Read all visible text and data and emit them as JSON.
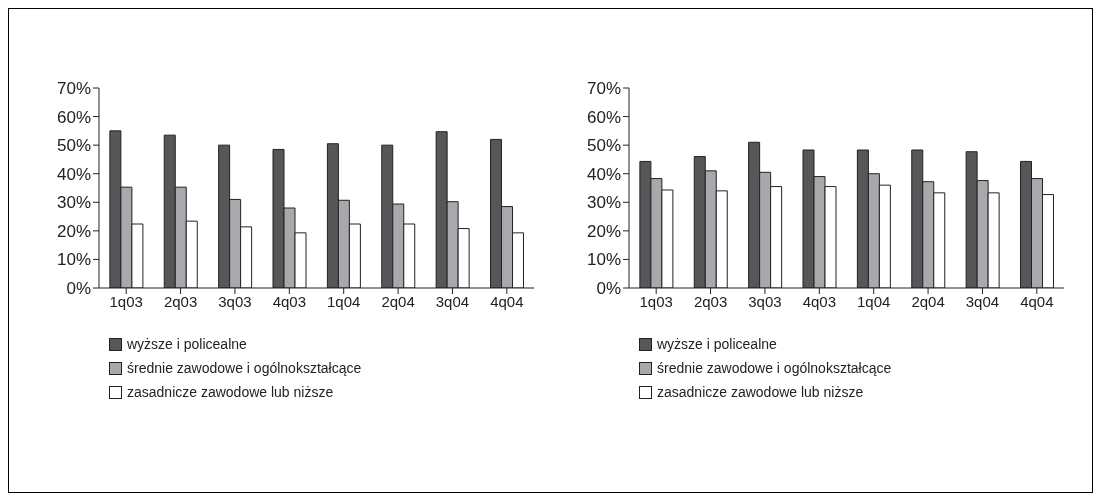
{
  "chart_data": [
    {
      "type": "bar",
      "categories": [
        "1q03",
        "2q03",
        "3q03",
        "4q03",
        "1q04",
        "2q04",
        "3q04",
        "4q04"
      ],
      "series": [
        {
          "name": "wyższe i policealne",
          "color": "#555759",
          "values": [
            55,
            53.5,
            50,
            48.5,
            50.5,
            50,
            54.7,
            52
          ]
        },
        {
          "name": "średnie zawodowe i ogólnokształcące",
          "color": "#a7a9ac",
          "values": [
            35.3,
            35.3,
            31,
            28,
            30.7,
            29.4,
            30.2,
            28.5
          ]
        },
        {
          "name": "zasadnicze zawodowe lub niższe",
          "color": "#ffffff",
          "values": [
            22.4,
            23.4,
            21.4,
            19.3,
            22.4,
            22.4,
            20.8,
            19.3
          ]
        }
      ],
      "ylim": [
        0,
        70
      ],
      "yticks": [
        {
          "value": 0,
          "label": "0%"
        },
        {
          "value": 10,
          "label": "10%"
        },
        {
          "value": 20,
          "label": "20%"
        },
        {
          "value": 30,
          "label": "30%"
        },
        {
          "value": 40,
          "label": "40%"
        },
        {
          "value": 50,
          "label": "50%"
        },
        {
          "value": 60,
          "label": "60%"
        },
        {
          "value": 70,
          "label": "70%"
        }
      ],
      "grid": false,
      "legend": "bottom"
    },
    {
      "type": "bar",
      "categories": [
        "1q03",
        "2q03",
        "3q03",
        "4q03",
        "1q04",
        "2q04",
        "3q04",
        "4q04"
      ],
      "series": [
        {
          "name": "wyższe i policealne",
          "color": "#555759",
          "values": [
            44.3,
            46,
            51,
            48.3,
            48.3,
            48.3,
            47.7,
            44.3
          ]
        },
        {
          "name": "średnie zawodowe i ogólnokształcące",
          "color": "#a7a9ac",
          "values": [
            38.3,
            41,
            40.5,
            39,
            40,
            37.2,
            37.6,
            38.3
          ]
        },
        {
          "name": "zasadnicze zawodowe lub niższe",
          "color": "#ffffff",
          "values": [
            34.3,
            34,
            35.5,
            35.5,
            36,
            33.3,
            33.3,
            32.7
          ]
        }
      ],
      "ylim": [
        0,
        70
      ],
      "yticks": [
        {
          "value": 0,
          "label": "0%"
        },
        {
          "value": 10,
          "label": "10%"
        },
        {
          "value": 20,
          "label": "20%"
        },
        {
          "value": 30,
          "label": "30%"
        },
        {
          "value": 40,
          "label": "40%"
        },
        {
          "value": 50,
          "label": "50%"
        },
        {
          "value": 60,
          "label": "60%"
        },
        {
          "value": 70,
          "label": "70%"
        }
      ],
      "grid": false,
      "legend": "bottom"
    }
  ]
}
